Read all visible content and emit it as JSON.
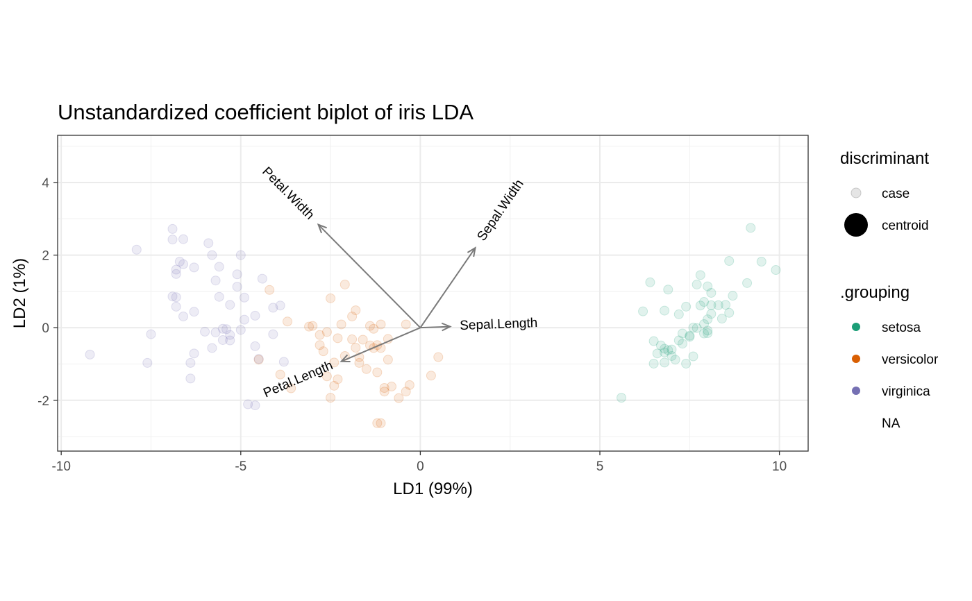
{
  "chart_data": {
    "type": "scatter",
    "title": "Unstandardized coefficient biplot of iris LDA",
    "xlabel": "LD1 (99%)",
    "ylabel": "LD2 (1%)",
    "xlim": [
      -10.1,
      10.8
    ],
    "ylim": [
      -3.4,
      5.3
    ],
    "xticks": [
      -10,
      -5,
      0,
      5,
      10
    ],
    "yticks": [
      -2,
      0,
      2,
      4
    ],
    "xtick_labels": [
      "-10",
      "-5",
      "0",
      "5",
      "10"
    ],
    "ytick_labels": [
      "-2",
      "0",
      "2",
      "4"
    ],
    "grid": true,
    "legend_position": "right",
    "legend": {
      "discriminant": {
        "title": "discriminant",
        "entries": [
          {
            "label": "case",
            "marker": "small-translucent-circle"
          },
          {
            "label": "centroid",
            "marker": "large-solid-circle"
          }
        ]
      },
      "grouping": {
        "title": ".grouping",
        "entries": [
          {
            "label": "setosa",
            "color": "#1B9E77"
          },
          {
            "label": "versicolor",
            "color": "#D95F02"
          },
          {
            "label": "virginica",
            "color": "#7570B3"
          },
          {
            "label": "NA",
            "color": ""
          }
        ]
      }
    },
    "series": [
      {
        "name": "setosa",
        "color": "#1B9E77",
        "points": [
          [
            5.6,
            -1.93
          ],
          [
            6.2,
            0.45
          ],
          [
            6.4,
            1.25
          ],
          [
            6.5,
            -0.37
          ],
          [
            6.5,
            -0.99
          ],
          [
            6.6,
            -0.71
          ],
          [
            6.7,
            -0.49
          ],
          [
            6.8,
            -0.58
          ],
          [
            6.8,
            0.47
          ],
          [
            6.8,
            -0.96
          ],
          [
            6.9,
            1.05
          ],
          [
            6.9,
            -0.62
          ],
          [
            7.0,
            -0.78
          ],
          [
            7.1,
            -0.88
          ],
          [
            7.2,
            0.37
          ],
          [
            7.2,
            -0.35
          ],
          [
            7.3,
            -0.16
          ],
          [
            7.3,
            -0.44
          ],
          [
            7.4,
            0.58
          ],
          [
            7.4,
            -0.99
          ],
          [
            7.5,
            -0.22
          ],
          [
            7.6,
            -0.79
          ],
          [
            7.7,
            1.19
          ],
          [
            7.7,
            -0.01
          ],
          [
            7.8,
            1.45
          ],
          [
            7.8,
            0.61
          ],
          [
            7.9,
            0.71
          ],
          [
            8.0,
            0.23
          ],
          [
            8.0,
            -0.15
          ],
          [
            8.0,
            1.14
          ],
          [
            8.1,
            0.38
          ],
          [
            8.1,
            0.62
          ],
          [
            8.1,
            0.96
          ],
          [
            8.3,
            0.62
          ],
          [
            8.5,
            0.63
          ],
          [
            8.6,
            0.41
          ],
          [
            8.6,
            1.84
          ],
          [
            8.7,
            0.88
          ],
          [
            9.1,
            1.23
          ],
          [
            9.2,
            2.75
          ],
          [
            9.5,
            1.82
          ],
          [
            9.9,
            1.59
          ],
          [
            7.6,
            0.0
          ],
          [
            7.0,
            -0.6
          ],
          [
            6.8,
            -0.68
          ],
          [
            7.9,
            0.1
          ],
          [
            8.0,
            -0.08
          ],
          [
            7.9,
            -0.16
          ],
          [
            8.4,
            0.25
          ],
          [
            7.5,
            -0.25
          ]
        ]
      },
      {
        "name": "versicolor",
        "color": "#D95F02",
        "points": [
          [
            -4.5,
            -0.88
          ],
          [
            -4.2,
            1.04
          ],
          [
            -3.9,
            -1.29
          ],
          [
            -3.7,
            0.17
          ],
          [
            -3.6,
            -1.67
          ],
          [
            -3.1,
            0.03
          ],
          [
            -3.0,
            0.05
          ],
          [
            -2.8,
            -0.2
          ],
          [
            -2.8,
            -0.48
          ],
          [
            -2.7,
            -0.65
          ],
          [
            -2.6,
            -1.34
          ],
          [
            -2.5,
            -1.93
          ],
          [
            -2.5,
            0.81
          ],
          [
            -2.4,
            -0.96
          ],
          [
            -2.4,
            -1.6
          ],
          [
            -2.3,
            -0.29
          ],
          [
            -2.3,
            -1.42
          ],
          [
            -2.2,
            0.09
          ],
          [
            -2.1,
            1.19
          ],
          [
            -2.1,
            -0.78
          ],
          [
            -1.9,
            -0.32
          ],
          [
            -1.9,
            0.31
          ],
          [
            -1.8,
            0.48
          ],
          [
            -1.7,
            -0.81
          ],
          [
            -1.7,
            -0.97
          ],
          [
            -1.6,
            -0.33
          ],
          [
            -1.5,
            -1.14
          ],
          [
            -1.4,
            -0.49
          ],
          [
            -1.4,
            0.05
          ],
          [
            -1.3,
            -0.56
          ],
          [
            -1.3,
            -0.03
          ],
          [
            -1.2,
            -1.23
          ],
          [
            -1.2,
            -0.48
          ],
          [
            -1.1,
            0.09
          ],
          [
            -1.1,
            -2.63
          ],
          [
            -1.1,
            -0.56
          ],
          [
            -1.0,
            -1.66
          ],
          [
            -1.0,
            -1.76
          ],
          [
            -0.9,
            -0.31
          ],
          [
            -0.9,
            -0.88
          ],
          [
            -0.8,
            -1.62
          ],
          [
            -0.6,
            -1.94
          ],
          [
            -0.4,
            -1.76
          ],
          [
            -0.3,
            -1.58
          ],
          [
            -0.4,
            0.09
          ],
          [
            0.3,
            -1.32
          ],
          [
            0.5,
            -0.81
          ],
          [
            -1.2,
            -2.63
          ],
          [
            -1.8,
            -0.55
          ],
          [
            -2.6,
            -0.12
          ]
        ]
      },
      {
        "name": "virginica",
        "color": "#7570B3",
        "points": [
          [
            -9.2,
            -0.74
          ],
          [
            -7.9,
            2.15
          ],
          [
            -7.6,
            -0.97
          ],
          [
            -7.5,
            -0.18
          ],
          [
            -6.9,
            2.72
          ],
          [
            -6.9,
            2.43
          ],
          [
            -6.9,
            0.86
          ],
          [
            -6.8,
            1.48
          ],
          [
            -6.8,
            0.58
          ],
          [
            -6.8,
            1.6
          ],
          [
            -6.7,
            1.82
          ],
          [
            -6.6,
            0.31
          ],
          [
            -6.6,
            2.44
          ],
          [
            -6.4,
            -0.97
          ],
          [
            -6.4,
            -1.4
          ],
          [
            -6.3,
            1.66
          ],
          [
            -6.3,
            0.44
          ],
          [
            -6.3,
            -0.71
          ],
          [
            -6.0,
            -0.11
          ],
          [
            -5.9,
            2.33
          ],
          [
            -5.8,
            2.0
          ],
          [
            -5.8,
            -0.56
          ],
          [
            -5.7,
            1.3
          ],
          [
            -5.7,
            -0.13
          ],
          [
            -5.6,
            1.68
          ],
          [
            -5.6,
            0.85
          ],
          [
            -5.5,
            -0.34
          ],
          [
            -5.5,
            -0.03
          ],
          [
            -5.4,
            -0.04
          ],
          [
            -5.3,
            -0.2
          ],
          [
            -5.3,
            0.63
          ],
          [
            -5.1,
            1.47
          ],
          [
            -5.1,
            1.13
          ],
          [
            -5.0,
            -0.06
          ],
          [
            -5.0,
            2.0
          ],
          [
            -4.9,
            0.22
          ],
          [
            -4.9,
            0.83
          ],
          [
            -4.8,
            -2.11
          ],
          [
            -4.6,
            0.33
          ],
          [
            -4.6,
            -0.51
          ],
          [
            -4.5,
            -0.86
          ],
          [
            -4.4,
            1.35
          ],
          [
            -4.1,
            -0.18
          ],
          [
            -4.1,
            0.55
          ],
          [
            -3.9,
            0.61
          ],
          [
            -3.8,
            -0.94
          ],
          [
            -4.6,
            -2.14
          ],
          [
            -6.8,
            0.84
          ],
          [
            -6.6,
            1.75
          ],
          [
            -5.3,
            -0.35
          ]
        ]
      }
    ],
    "arrows": [
      {
        "label": "Sepal.Length",
        "x": 0.83,
        "y": 0.03
      },
      {
        "label": "Sepal.Width",
        "x": 1.53,
        "y": 2.2
      },
      {
        "label": "Petal.Length",
        "x": -2.2,
        "y": -0.93
      },
      {
        "label": "Petal.Width",
        "x": -2.84,
        "y": 2.84
      }
    ]
  }
}
